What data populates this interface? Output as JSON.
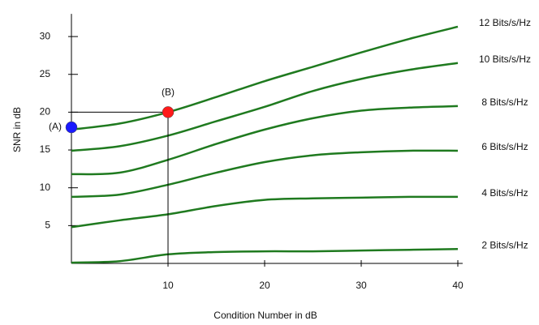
{
  "chart_data": {
    "type": "line",
    "xlabel": "Condition Number in dB",
    "ylabel": "SNR in dB",
    "x": [
      0,
      5,
      10,
      15,
      20,
      25,
      30,
      35,
      40
    ],
    "xlim": [
      0,
      40.5
    ],
    "ylim": [
      0,
      33
    ],
    "xticks": [
      10,
      20,
      30,
      40
    ],
    "yticks": [
      5,
      10,
      15,
      20,
      25,
      30
    ],
    "series": [
      {
        "name": "12 Bits/s/Hz",
        "color": "#1f7a1f",
        "values": [
          17.7,
          18.5,
          20,
          22,
          24.1,
          26,
          27.9,
          29.7,
          31.3
        ]
      },
      {
        "name": "10 Bits/s/Hz",
        "color": "#1f7a1f",
        "values": [
          14.9,
          15.5,
          16.9,
          18.8,
          20.7,
          22.8,
          24.4,
          25.6,
          26.5
        ]
      },
      {
        "name": "8 Bits/s/Hz",
        "color": "#1f7a1f",
        "values": [
          11.8,
          12,
          13.7,
          15.8,
          17.7,
          19.2,
          20.2,
          20.6,
          20.8
        ]
      },
      {
        "name": "6 Bits/s/Hz",
        "color": "#1f7a1f",
        "values": [
          8.8,
          9.1,
          10.4,
          12,
          13.4,
          14.3,
          14.7,
          14.9,
          14.9
        ]
      },
      {
        "name": "4 Bits/s/Hz",
        "color": "#1f7a1f",
        "values": [
          4.8,
          5.7,
          6.5,
          7.6,
          8.4,
          8.6,
          8.7,
          8.8,
          8.8
        ]
      },
      {
        "name": "2 Bits/s/Hz",
        "color": "#1f7a1f",
        "values": [
          0.1,
          0.3,
          1.2,
          1.5,
          1.6,
          1.6,
          1.7,
          1.8,
          1.9
        ]
      }
    ],
    "points": [
      {
        "label": "(A)",
        "x": 0,
        "y": 18,
        "color": "#1a1aff"
      },
      {
        "label": "(B)",
        "x": 10,
        "y": 20,
        "color": "#ff1a1a"
      }
    ]
  }
}
